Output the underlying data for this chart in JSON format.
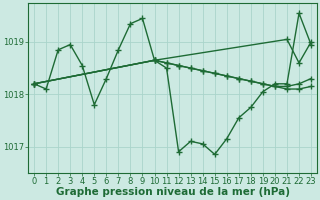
{
  "background_color": "#cce9e2",
  "grid_color": "#aad4cb",
  "line_color": "#1e6b35",
  "marker_size": 4,
  "line_width": 1.0,
  "xlabel": "Graphe pression niveau de la mer (hPa)",
  "xlabel_fontsize": 7.5,
  "tick_fontsize": 6,
  "ylim": [
    1016.5,
    1019.75
  ],
  "xlim": [
    -0.5,
    23.5
  ],
  "yticks": [
    1017,
    1018,
    1019
  ],
  "xticks": [
    0,
    1,
    2,
    3,
    4,
    5,
    6,
    7,
    8,
    9,
    10,
    11,
    12,
    13,
    14,
    15,
    16,
    17,
    18,
    19,
    20,
    21,
    22,
    23
  ],
  "series": [
    {
      "x": [
        0,
        1,
        2,
        3,
        4,
        5,
        6,
        7,
        8,
        9,
        10,
        21,
        22,
        23
      ],
      "y": [
        1018.2,
        1018.1,
        1018.85,
        1018.95,
        1018.55,
        1017.8,
        1018.3,
        1018.85,
        1019.35,
        1019.45,
        1018.65,
        1019.05,
        1018.6,
        1019.0
      ]
    },
    {
      "x": [
        0,
        10,
        11,
        12,
        13,
        14,
        15,
        16,
        17,
        18,
        19,
        20,
        21,
        22,
        23
      ],
      "y": [
        1018.2,
        1018.65,
        1018.5,
        1016.9,
        1017.1,
        1017.05,
        1016.85,
        1017.15,
        1017.55,
        1017.75,
        1018.05,
        1018.2,
        1018.2,
        1019.55,
        1018.95
      ]
    },
    {
      "x": [
        0,
        10,
        11,
        12,
        13,
        14,
        15,
        16,
        17,
        18,
        19,
        20,
        21,
        22,
        23
      ],
      "y": [
        1018.2,
        1018.65,
        1018.6,
        1018.55,
        1018.5,
        1018.45,
        1018.4,
        1018.35,
        1018.3,
        1018.25,
        1018.2,
        1018.15,
        1018.15,
        1018.2,
        1018.3
      ]
    },
    {
      "x": [
        0,
        10,
        11,
        12,
        13,
        14,
        15,
        16,
        17,
        18,
        19,
        20,
        21,
        22,
        23
      ],
      "y": [
        1018.2,
        1018.65,
        1018.6,
        1018.55,
        1018.5,
        1018.45,
        1018.4,
        1018.35,
        1018.3,
        1018.25,
        1018.2,
        1018.15,
        1018.1,
        1018.1,
        1018.15
      ]
    }
  ]
}
